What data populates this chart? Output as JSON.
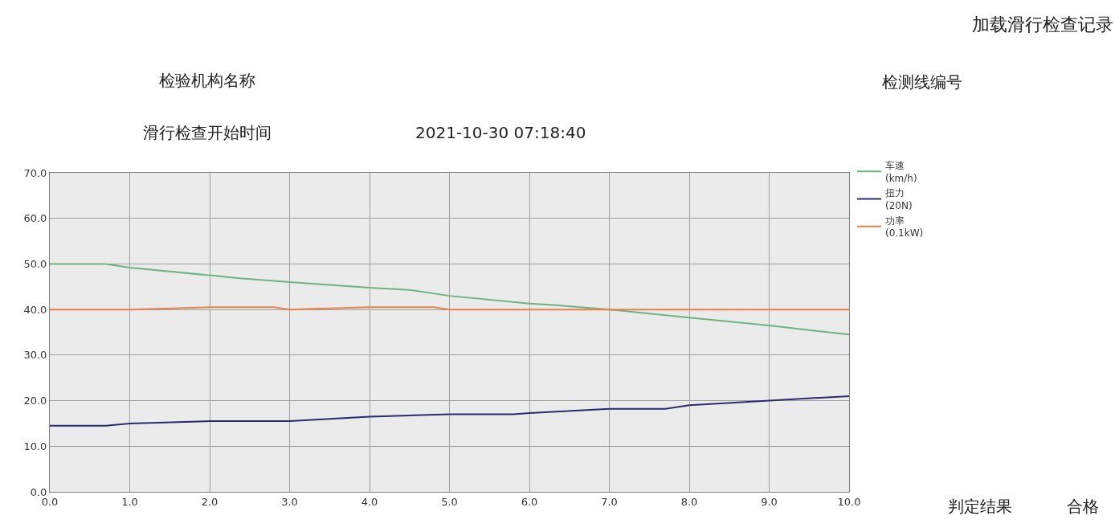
{
  "chart_data": {
    "type": "line",
    "annotations": [
      "加载滑行检查记录",
      "检验机构名称",
      "检测线编号",
      "滑行检查开始时间",
      "2021-10-30 07:18:40",
      "判定结果",
      "合格"
    ],
    "series": [
      {
        "name": "车速\n(km/h)",
        "color": "#6fb37f",
        "x": [
          0,
          0.7,
          1.0,
          2.0,
          2.4,
          3.0,
          4.0,
          4.5,
          5.0,
          6.0,
          6.3,
          7.0,
          8.0,
          9.0,
          9.5,
          10.0
        ],
        "values": [
          50,
          50,
          49.2,
          47.5,
          46.8,
          46,
          44.8,
          44.3,
          43,
          41.3,
          41,
          40,
          38.2,
          36.5,
          35.5,
          34.5
        ]
      },
      {
        "name": "扭力\n(20N)",
        "color": "#2b2a6e",
        "x": [
          0,
          0.7,
          1.0,
          2.0,
          3.0,
          4.0,
          5.0,
          5.8,
          6.0,
          7.0,
          7.7,
          8.0,
          9.0,
          10.0
        ],
        "values": [
          14.5,
          14.5,
          15,
          15.5,
          15.5,
          16.5,
          17,
          17,
          17.3,
          18.2,
          18.2,
          19,
          20,
          21
        ]
      },
      {
        "name": "功率\n(0.1kW)",
        "color": "#e8804a",
        "x": [
          0,
          1.0,
          2.0,
          2.8,
          3.0,
          4.0,
          4.8,
          5.0,
          6.0,
          7.0,
          8.0,
          9.0,
          10.0
        ],
        "values": [
          40,
          40,
          40.5,
          40.5,
          40,
          40.5,
          40.5,
          40,
          40,
          40,
          40,
          40,
          40
        ]
      }
    ],
    "xlim": [
      0,
      10
    ],
    "ylim": [
      0,
      70
    ],
    "xticks": [
      {
        "value": 0,
        "label": "0.0"
      },
      {
        "value": 1,
        "label": "1.0"
      },
      {
        "value": 2,
        "label": "2.0"
      },
      {
        "value": 3,
        "label": "3.0"
      },
      {
        "value": 4,
        "label": "4.0"
      },
      {
        "value": 5,
        "label": "5.0"
      },
      {
        "value": 6,
        "label": "6.0"
      },
      {
        "value": 7,
        "label": "7.0"
      },
      {
        "value": 8,
        "label": "8.0"
      },
      {
        "value": 9,
        "label": "9.0"
      },
      {
        "value": 10,
        "label": "10.0"
      }
    ],
    "yticks": [
      {
        "value": 0,
        "label": "0.0"
      },
      {
        "value": 10,
        "label": "10.0"
      },
      {
        "value": 20,
        "label": "20.0"
      },
      {
        "value": 30,
        "label": "30.0"
      },
      {
        "value": 40,
        "label": "40.0"
      },
      {
        "value": 50,
        "label": "50.0"
      },
      {
        "value": 60,
        "label": "60.0"
      },
      {
        "value": 70,
        "label": "70.0"
      }
    ],
    "grid": true,
    "legend": "right",
    "marker": "none",
    "line_style": "solid"
  }
}
